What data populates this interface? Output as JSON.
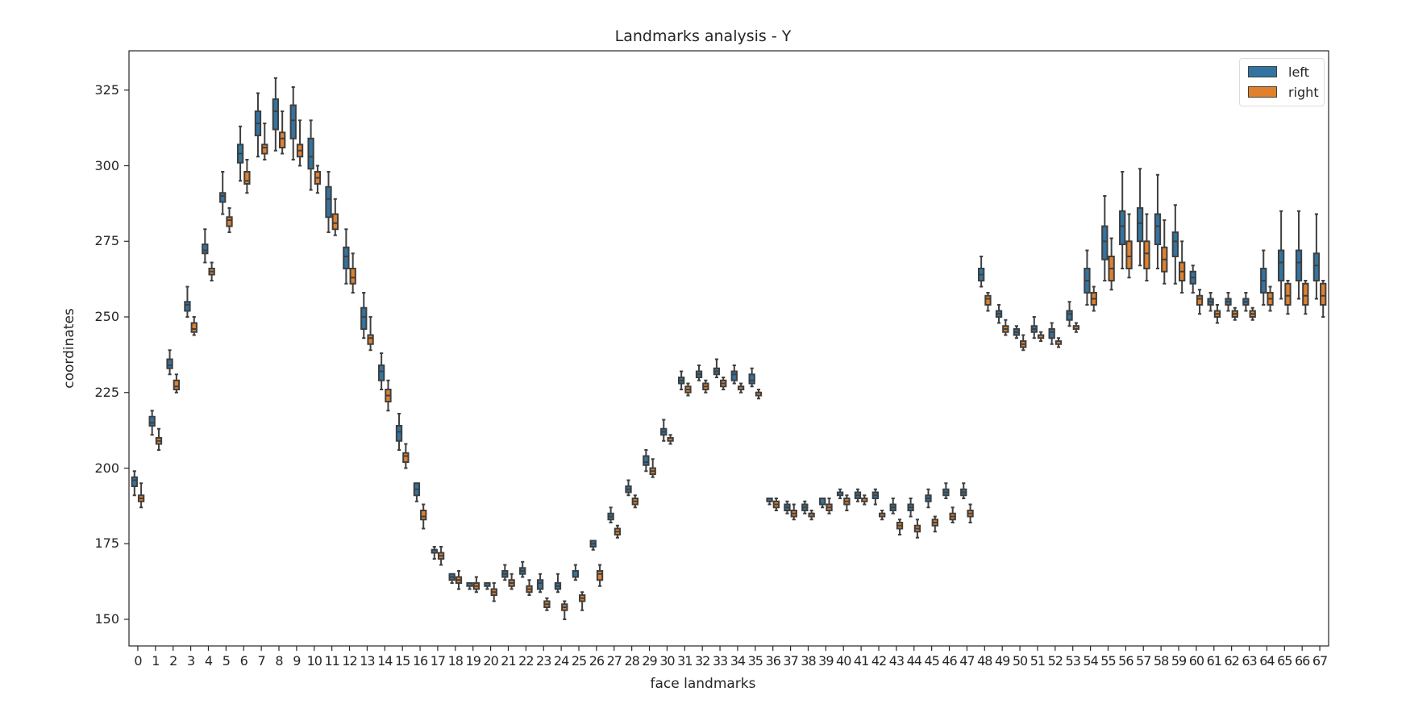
{
  "chart_data": {
    "type": "box",
    "title": "Landmarks analysis - Y",
    "xlabel": "face landmarks",
    "ylabel": "coordinates",
    "ylim": [
      141.2,
      338
    ],
    "yticks": [
      150,
      175,
      200,
      225,
      250,
      275,
      300,
      325
    ],
    "grid": false,
    "legend_position": "upper right",
    "categories": [
      "0",
      "1",
      "2",
      "3",
      "4",
      "5",
      "6",
      "7",
      "8",
      "9",
      "10",
      "11",
      "12",
      "13",
      "14",
      "15",
      "16",
      "17",
      "18",
      "19",
      "20",
      "21",
      "22",
      "23",
      "24",
      "25",
      "26",
      "27",
      "28",
      "29",
      "30",
      "31",
      "32",
      "33",
      "34",
      "35",
      "36",
      "37",
      "38",
      "39",
      "40",
      "41",
      "42",
      "43",
      "44",
      "45",
      "46",
      "47",
      "48",
      "49",
      "50",
      "51",
      "52",
      "53",
      "54",
      "55",
      "56",
      "57",
      "58",
      "59",
      "60",
      "61",
      "62",
      "63",
      "64",
      "65",
      "66",
      "67"
    ],
    "box_stat_order": [
      "whisker_low",
      "q1",
      "median",
      "q3",
      "whisker_high"
    ],
    "series": [
      {
        "name": "left",
        "color": "#3274a1",
        "boxes": [
          [
            191,
            194,
            196,
            197,
            199
          ],
          [
            211,
            214,
            215,
            217,
            219
          ],
          [
            231,
            233,
            234,
            236,
            239
          ],
          [
            250,
            252,
            254,
            255,
            260
          ],
          [
            268,
            271,
            272,
            274,
            279
          ],
          [
            284,
            288,
            290,
            291,
            298
          ],
          [
            295,
            301,
            304,
            307,
            313
          ],
          [
            303,
            310,
            314,
            318,
            324
          ],
          [
            305,
            312,
            318,
            322,
            329
          ],
          [
            302,
            309,
            315,
            320,
            326
          ],
          [
            292,
            299,
            303,
            309,
            315
          ],
          [
            278,
            283,
            289,
            293,
            298
          ],
          [
            261,
            266,
            270,
            273,
            279
          ],
          [
            243,
            246,
            250,
            253,
            258
          ],
          [
            226,
            229,
            232,
            234,
            238
          ],
          [
            206,
            209,
            212,
            214,
            218
          ],
          [
            189,
            191,
            193,
            195,
            195
          ],
          [
            170,
            172,
            173,
            173,
            174
          ],
          [
            162,
            163,
            164,
            165,
            165
          ],
          [
            160,
            161,
            162,
            162,
            162
          ],
          [
            160,
            161,
            162,
            162,
            162
          ],
          [
            163,
            164,
            165,
            166,
            168
          ],
          [
            164,
            165,
            166,
            167,
            169
          ],
          [
            159,
            160,
            162,
            163,
            165
          ],
          [
            159,
            160,
            161,
            162,
            165
          ],
          [
            163,
            164,
            166,
            166,
            168
          ],
          [
            173,
            174,
            175,
            176,
            176
          ],
          [
            182,
            183,
            184,
            185,
            187
          ],
          [
            191,
            192,
            193,
            194,
            196
          ],
          [
            199,
            201,
            202,
            204,
            206
          ],
          [
            209,
            211,
            212,
            213,
            216
          ],
          [
            226,
            228,
            229,
            230,
            232
          ],
          [
            229,
            230,
            231,
            232,
            234
          ],
          [
            230,
            231,
            232,
            233,
            236
          ],
          [
            228,
            229,
            231,
            232,
            234
          ],
          [
            227,
            228,
            229,
            231,
            233
          ],
          [
            188,
            189,
            190,
            190,
            190
          ],
          [
            185,
            186,
            187,
            188,
            189
          ],
          [
            185,
            186,
            187,
            188,
            189
          ],
          [
            187,
            188,
            190,
            190,
            190
          ],
          [
            190,
            191,
            192,
            192,
            193
          ],
          [
            189,
            190,
            191,
            192,
            193
          ],
          [
            188,
            190,
            191,
            192,
            193
          ],
          [
            185,
            186,
            187,
            188,
            190
          ],
          [
            184,
            186,
            187,
            188,
            190
          ],
          [
            187,
            189,
            190,
            191,
            193
          ],
          [
            190,
            191,
            192,
            193,
            195
          ],
          [
            190,
            191,
            192,
            193,
            195
          ],
          [
            260,
            262,
            264,
            266,
            270
          ],
          [
            248,
            250,
            251,
            252,
            254
          ],
          [
            243,
            244,
            245,
            246,
            247
          ],
          [
            243,
            245,
            246,
            247,
            250
          ],
          [
            241,
            243,
            245,
            246,
            248
          ],
          [
            247,
            249,
            251,
            252,
            255
          ],
          [
            254,
            258,
            262,
            266,
            272
          ],
          [
            262,
            269,
            275,
            280,
            290
          ],
          [
            266,
            274,
            280,
            285,
            298
          ],
          [
            267,
            275,
            281,
            286,
            299
          ],
          [
            266,
            274,
            280,
            284,
            297
          ],
          [
            261,
            270,
            275,
            278,
            287
          ],
          [
            258,
            261,
            263,
            265,
            267
          ],
          [
            252,
            254,
            255,
            256,
            258
          ],
          [
            252,
            254,
            255,
            256,
            258
          ],
          [
            252,
            254,
            255,
            256,
            258
          ],
          [
            254,
            258,
            262,
            266,
            272
          ],
          [
            256,
            262,
            268,
            272,
            285
          ],
          [
            256,
            262,
            268,
            272,
            285
          ],
          [
            256,
            262,
            267,
            271,
            284
          ]
        ]
      },
      {
        "name": "right",
        "color": "#e1812c",
        "boxes": [
          [
            187,
            189,
            190,
            191,
            195
          ],
          [
            206,
            208,
            209,
            210,
            213
          ],
          [
            225,
            226,
            227,
            229,
            231
          ],
          [
            244,
            245,
            246,
            248,
            250
          ],
          [
            262,
            264,
            265,
            266,
            268
          ],
          [
            278,
            280,
            282,
            283,
            286
          ],
          [
            291,
            294,
            295,
            298,
            302
          ],
          [
            302,
            304,
            306,
            307,
            314
          ],
          [
            304,
            306,
            309,
            311,
            318
          ],
          [
            300,
            303,
            305,
            307,
            315
          ],
          [
            291,
            294,
            296,
            298,
            300
          ],
          [
            277,
            279,
            281,
            284,
            289
          ],
          [
            258,
            261,
            263,
            266,
            271
          ],
          [
            239,
            241,
            243,
            244,
            250
          ],
          [
            219,
            222,
            224,
            226,
            229
          ],
          [
            200,
            202,
            204,
            205,
            208
          ],
          [
            180,
            183,
            184,
            186,
            188
          ],
          [
            168,
            170,
            171,
            172,
            174
          ],
          [
            160,
            162,
            163,
            164,
            166
          ],
          [
            159,
            160,
            161,
            162,
            164
          ],
          [
            156,
            158,
            159,
            160,
            162
          ],
          [
            160,
            161,
            162,
            163,
            165
          ],
          [
            158,
            159,
            160,
            161,
            163
          ],
          [
            153,
            154,
            155,
            156,
            157
          ],
          [
            150,
            153,
            154,
            155,
            156
          ],
          [
            153,
            156,
            157,
            158,
            159
          ],
          [
            161,
            163,
            165,
            166,
            168
          ],
          [
            177,
            178,
            179,
            180,
            181
          ],
          [
            187,
            188,
            189,
            190,
            191
          ],
          [
            197,
            198,
            199,
            200,
            203
          ],
          [
            208,
            209,
            210,
            210,
            211
          ],
          [
            224,
            225,
            226,
            227,
            228
          ],
          [
            225,
            226,
            227,
            228,
            229
          ],
          [
            226,
            227,
            228,
            229,
            230
          ],
          [
            225,
            226,
            227,
            227,
            228
          ],
          [
            223,
            224,
            225,
            225,
            226
          ],
          [
            186,
            187,
            188,
            189,
            190
          ],
          [
            183,
            184,
            185,
            186,
            188
          ],
          [
            183,
            184,
            185,
            185,
            186
          ],
          [
            185,
            186,
            187,
            188,
            190
          ],
          [
            186,
            188,
            189,
            190,
            191
          ],
          [
            188,
            189,
            190,
            190,
            191
          ],
          [
            183,
            184,
            185,
            185,
            186
          ],
          [
            178,
            180,
            181,
            182,
            183
          ],
          [
            177,
            179,
            180,
            181,
            183
          ],
          [
            179,
            181,
            182,
            183,
            184
          ],
          [
            182,
            183,
            184,
            185,
            187
          ],
          [
            182,
            184,
            185,
            186,
            188
          ],
          [
            252,
            254,
            256,
            257,
            258
          ],
          [
            244,
            245,
            246,
            247,
            249
          ],
          [
            239,
            240,
            241,
            242,
            244
          ],
          [
            242,
            243,
            244,
            244,
            245
          ],
          [
            240,
            241,
            242,
            242,
            243
          ],
          [
            245,
            246,
            247,
            247,
            248
          ],
          [
            252,
            254,
            256,
            258,
            260
          ],
          [
            259,
            262,
            266,
            270,
            276
          ],
          [
            263,
            266,
            270,
            275,
            284
          ],
          [
            262,
            266,
            271,
            275,
            284
          ],
          [
            261,
            265,
            269,
            273,
            282
          ],
          [
            258,
            262,
            265,
            268,
            275
          ],
          [
            251,
            254,
            256,
            257,
            259
          ],
          [
            248,
            250,
            251,
            252,
            254
          ],
          [
            249,
            250,
            251,
            252,
            253
          ],
          [
            249,
            250,
            251,
            252,
            253
          ],
          [
            252,
            254,
            256,
            258,
            260
          ],
          [
            251,
            254,
            257,
            261,
            262
          ],
          [
            251,
            254,
            257,
            261,
            262
          ],
          [
            250,
            254,
            257,
            261,
            262
          ]
        ]
      }
    ],
    "outliers_note": "diamond-shaped fliers visible near landmarks 10, 15-21, 25-26, 30-31, 36, 38-41, 48, 51-53, 62"
  },
  "legend": {
    "items": [
      {
        "label": "left",
        "color": "#3274a1"
      },
      {
        "label": "right",
        "color": "#e1812c"
      }
    ]
  }
}
